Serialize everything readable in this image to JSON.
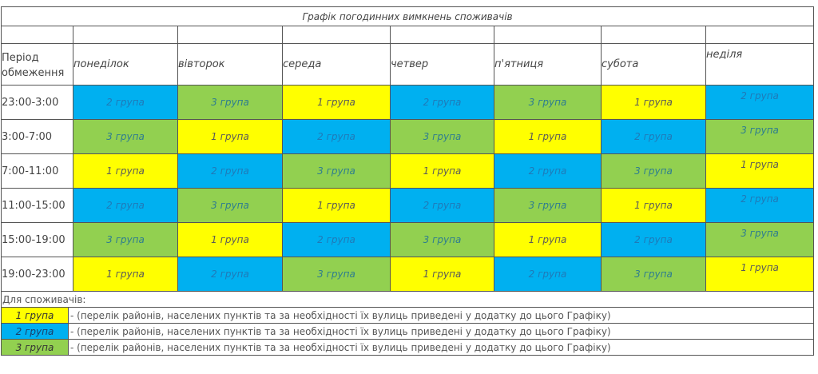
{
  "schedule": {
    "title": "Графік погодинних вимкнень споживачів",
    "period_header": "Період обмеження",
    "days": [
      "понеділок",
      "вівторок",
      "середа",
      "четвер",
      "п'ятниця",
      "субота",
      "неділя"
    ],
    "rows": [
      {
        "period": "23:00-3:00",
        "cells": [
          {
            "label": "2 група",
            "group": 2
          },
          {
            "label": "3 група",
            "group": 3
          },
          {
            "label": "1 група",
            "group": 1
          },
          {
            "label": "2 група",
            "group": 2
          },
          {
            "label": "3 група",
            "group": 3
          },
          {
            "label": "1 група",
            "group": 1
          },
          {
            "label": "2 група",
            "group": 2
          }
        ]
      },
      {
        "period": "3:00-7:00",
        "cells": [
          {
            "label": "3 група",
            "group": 3
          },
          {
            "label": "1 група",
            "group": 1
          },
          {
            "label": "2 група",
            "group": 2
          },
          {
            "label": "3 група",
            "group": 3
          },
          {
            "label": "1 група",
            "group": 1
          },
          {
            "label": "2 група",
            "group": 2
          },
          {
            "label": "3 група",
            "group": 3
          }
        ]
      },
      {
        "period": "7:00-11:00",
        "cells": [
          {
            "label": "1 група",
            "group": 1
          },
          {
            "label": "2 група",
            "group": 2
          },
          {
            "label": "3 група",
            "group": 3
          },
          {
            "label": "1 група",
            "group": 1
          },
          {
            "label": "2 група",
            "group": 2
          },
          {
            "label": "3 група",
            "group": 3
          },
          {
            "label": "1 група",
            "group": 1
          }
        ]
      },
      {
        "period": "11:00-15:00",
        "cells": [
          {
            "label": "2 група",
            "group": 2
          },
          {
            "label": "3 група",
            "group": 3
          },
          {
            "label": "1 група",
            "group": 1
          },
          {
            "label": "2 група",
            "group": 2
          },
          {
            "label": "3 група",
            "group": 3
          },
          {
            "label": "1 група",
            "group": 1
          },
          {
            "label": "2 група",
            "group": 2
          }
        ]
      },
      {
        "period": "15:00-19:00",
        "cells": [
          {
            "label": "3 група",
            "group": 3
          },
          {
            "label": "1 група",
            "group": 1
          },
          {
            "label": "2 група",
            "group": 2
          },
          {
            "label": "3 група",
            "group": 3
          },
          {
            "label": "1 група",
            "group": 1
          },
          {
            "label": "2 група",
            "group": 2
          },
          {
            "label": "3 група",
            "group": 3
          }
        ]
      },
      {
        "period": "19:00-23:00",
        "cells": [
          {
            "label": "1 група",
            "group": 1
          },
          {
            "label": "2 група",
            "group": 2
          },
          {
            "label": "3 група",
            "group": 3
          },
          {
            "label": "1 група",
            "group": 1
          },
          {
            "label": "2 група",
            "group": 2
          },
          {
            "label": "3 група",
            "group": 3
          },
          {
            "label": "1 група",
            "group": 1
          }
        ]
      }
    ]
  },
  "legend": {
    "heading": "Для споживачів:",
    "items": [
      {
        "label": "1 група",
        "group": 1,
        "description": "- (перелік районів, населених пунктів та за необхідності їх вулиць приведені у додатку до цього Графіку)"
      },
      {
        "label": "2 група",
        "group": 2,
        "description": "- (перелік районів, населених пунктів та за необхідності їх вулиць приведені у додатку до цього Графіку)"
      },
      {
        "label": "3 група",
        "group": 3,
        "description": "- (перелік районів, населених пунктів та за необхідності їх вулиць приведені у додатку до цього Графіку)"
      }
    ]
  },
  "colors": {
    "group_1": "#ffff00",
    "group_2": "#00b0f0",
    "group_3": "#92d050",
    "border": "#555555"
  }
}
